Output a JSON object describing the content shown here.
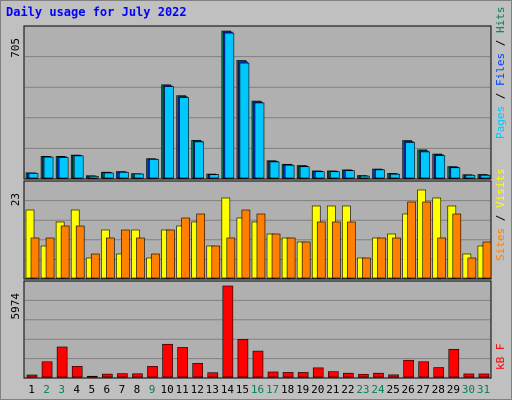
{
  "title": "Daily usage for July 2022",
  "colors": {
    "frame": "#c0c0c0",
    "plot_bg": "#b0b0b0",
    "grid": "#808080",
    "pages": "#00c8ff",
    "pages_shadow": "#006080",
    "files": "#0040ff",
    "hits": "#00805a",
    "sites": "#ff8000",
    "visits": "#ffff00",
    "kbytes": "#ff0000",
    "weekday_label": "#000000",
    "weekend_label": "#00805a",
    "title": "#0000ff"
  },
  "chart_data": [
    {
      "type": "bar",
      "panel": "hits-files-pages",
      "max_label": "705",
      "ylim": [
        0,
        705
      ],
      "legend_labels": [
        "Pages",
        "Files",
        "Hits"
      ],
      "categories": [
        "1",
        "2",
        "3",
        "4",
        "5",
        "6",
        "7",
        "8",
        "9",
        "10",
        "11",
        "12",
        "13",
        "14",
        "15",
        "16",
        "17",
        "18",
        "19",
        "20",
        "21",
        "22",
        "23",
        "24",
        "25",
        "26",
        "27",
        "28",
        "29",
        "30",
        "31"
      ],
      "weekend_days": [
        "2",
        "3",
        "9",
        "16",
        "17",
        "23",
        "24",
        "30",
        "31"
      ],
      "series": [
        {
          "name": "Hits",
          "values": [
            25,
            104,
            104,
            110,
            11,
            28,
            31,
            21,
            93,
            447,
            395,
            181,
            19,
            705,
            564,
            369,
            83,
            66,
            60,
            34,
            34,
            39,
            12,
            43,
            22,
            180,
            135,
            115,
            55,
            16,
            17
          ]
        },
        {
          "name": "Files",
          "values": [
            24,
            102,
            101,
            108,
            9,
            26,
            29,
            20,
            91,
            442,
            390,
            177,
            17,
            700,
            557,
            364,
            80,
            64,
            57,
            32,
            32,
            37,
            10,
            41,
            20,
            175,
            130,
            111,
            52,
            14,
            15
          ]
        },
        {
          "name": "Pages",
          "values": [
            22,
            100,
            98,
            106,
            8,
            24,
            27,
            19,
            89,
            438,
            385,
            173,
            16,
            695,
            551,
            360,
            77,
            61,
            54,
            30,
            30,
            35,
            9,
            39,
            18,
            170,
            125,
            107,
            49,
            13,
            13
          ]
        }
      ]
    },
    {
      "type": "bar",
      "panel": "visits-sites",
      "max_label": "23",
      "ylim": [
        0,
        23
      ],
      "legend_labels": [
        "Sites",
        "Visits"
      ],
      "categories": [
        "1",
        "2",
        "3",
        "4",
        "5",
        "6",
        "7",
        "8",
        "9",
        "10",
        "11",
        "12",
        "13",
        "14",
        "15",
        "16",
        "17",
        "18",
        "19",
        "20",
        "21",
        "22",
        "23",
        "24",
        "25",
        "26",
        "27",
        "28",
        "29",
        "30",
        "31"
      ],
      "series": [
        {
          "name": "Visits",
          "values": [
            17,
            8,
            14,
            17,
            5,
            12,
            6,
            12,
            5,
            12,
            13,
            14,
            8,
            20,
            15,
            14,
            11,
            10,
            9,
            18,
            18,
            18,
            5,
            10,
            11,
            16,
            22,
            20,
            18,
            6,
            8
          ]
        },
        {
          "name": "Sites",
          "values": [
            10,
            10,
            13,
            13,
            6,
            10,
            12,
            10,
            6,
            12,
            15,
            16,
            8,
            10,
            17,
            16,
            11,
            10,
            9,
            14,
            14,
            14,
            5,
            10,
            10,
            19,
            19,
            10,
            16,
            5,
            9
          ]
        }
      ]
    },
    {
      "type": "bar",
      "panel": "kbytes",
      "max_label": "5974",
      "ylim": [
        0,
        5974
      ],
      "legend_labels": [
        "kB F"
      ],
      "categories": [
        "1",
        "2",
        "3",
        "4",
        "5",
        "6",
        "7",
        "8",
        "9",
        "10",
        "11",
        "12",
        "13",
        "14",
        "15",
        "16",
        "17",
        "18",
        "19",
        "20",
        "21",
        "22",
        "23",
        "24",
        "25",
        "26",
        "27",
        "28",
        "29",
        "30",
        "31"
      ],
      "series": [
        {
          "name": "kB F",
          "values": [
            130,
            1000,
            1970,
            700,
            50,
            190,
            220,
            210,
            700,
            2150,
            1940,
            900,
            280,
            5974,
            2470,
            1700,
            330,
            300,
            300,
            600,
            350,
            250,
            180,
            250,
            140,
            1100,
            1000,
            620,
            1820,
            200,
            200
          ]
        }
      ]
    }
  ]
}
